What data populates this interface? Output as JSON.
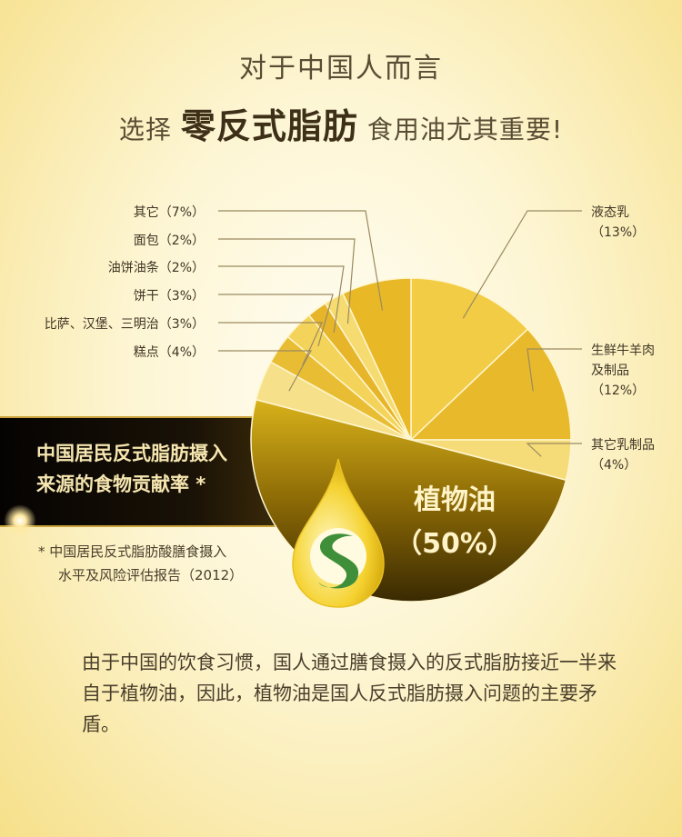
{
  "header": {
    "line1": "对于中国人而言",
    "line2_pre": "选择",
    "line2_em": "零反式脂肪",
    "line2_post": "食用油尤其重要!"
  },
  "banner": {
    "line1": "中国居民反式脂肪摄入",
    "line2": "来源的食物贡献率 *"
  },
  "footnote": {
    "line1": "* 中国居民反式脂肪酸膳食摄入",
    "line2": "水平及风险评估报告（2012）"
  },
  "paragraph": "由于中国的饮食习惯，国人通过膳食摄入的反式脂肪接近一半来自于植物油，因此，植物油是国人反式脂肪摄入问题的主要矛盾。",
  "chart_data": {
    "type": "pie",
    "start": "12 o'clock, clockwise",
    "slices": [
      {
        "label": "液态乳",
        "value": 13,
        "text": "液态乳\n（13%）",
        "color": "#f2cc45",
        "side": "right"
      },
      {
        "label": "生鲜牛羊肉及制品",
        "value": 12,
        "text": "生鲜牛羊肉\n及制品\n（12%）",
        "color": "#e8b92a",
        "side": "right"
      },
      {
        "label": "其它乳制品",
        "value": 4,
        "text": "其它乳制品\n（4%）",
        "color": "#f6dc78",
        "side": "right"
      },
      {
        "label": "植物油",
        "value": 50,
        "text": "植物油\n（50%）",
        "color": "#a88208",
        "side": "inside"
      },
      {
        "label": "糕点",
        "value": 4,
        "text": "糕点（4%）",
        "color": "#f7e08a",
        "side": "left"
      },
      {
        "label": "比萨、汉堡、三明治",
        "value": 3,
        "text": "比萨、汉堡、三明治（3%）",
        "color": "#e9bd33",
        "side": "left"
      },
      {
        "label": "饼干",
        "value": 3,
        "text": "饼干（3%）",
        "color": "#f4d35a",
        "side": "left"
      },
      {
        "label": "油饼油条",
        "value": 2,
        "text": "油饼油条（2%）",
        "color": "#e6b52a",
        "side": "left"
      },
      {
        "label": "面包",
        "value": 2,
        "text": "面包（2%）",
        "color": "#f6db70",
        "side": "left"
      },
      {
        "label": "其它",
        "value": 7,
        "text": "其它（7%）",
        "color": "#e8b826",
        "side": "left"
      }
    ]
  }
}
